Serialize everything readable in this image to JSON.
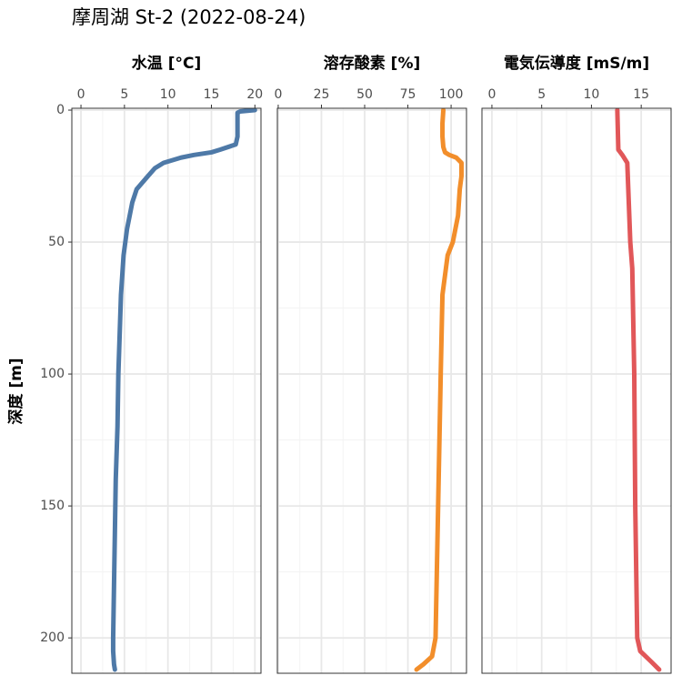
{
  "chart_data": [
    {
      "type": "line",
      "title": "摩周湖 St-2 (2022-08-24)",
      "y_label": "深度 [m]",
      "x_label": "水温 [°C]",
      "ylim": [
        -0.7,
        213.4
      ],
      "yticks": [
        0,
        50,
        100,
        150,
        200
      ],
      "y_reversed": true,
      "grid": true,
      "xlim": [
        -1.05,
        20.7
      ],
      "xticks": [
        0,
        5,
        10,
        15,
        20
      ],
      "depth": [
        0,
        0.5,
        1,
        5,
        10,
        13,
        15,
        16,
        17,
        18,
        19,
        20,
        22,
        25,
        30,
        35,
        40,
        45,
        50,
        55,
        60,
        70,
        80,
        90,
        100,
        120,
        140,
        160,
        180,
        200,
        205,
        210,
        212
      ],
      "series": [
        {
          "color": "#4e79a7",
          "values": [
            20,
            18.3,
            18,
            18,
            18,
            17.8,
            16,
            15,
            13,
            11.5,
            10.5,
            9.5,
            8.5,
            7.7,
            6.4,
            5.9,
            5.6,
            5.3,
            5.1,
            4.9,
            4.8,
            4.6,
            4.5,
            4.4,
            4.3,
            4.2,
            4.0,
            3.9,
            3.8,
            3.7,
            3.7,
            3.8,
            3.9
          ]
        }
      ]
    },
    {
      "type": "line",
      "x_label": "溶存酸素 [%]",
      "xlim": [
        -0.5,
        108.9
      ],
      "xticks": [
        0,
        25,
        50,
        75,
        100
      ],
      "depth": [
        0,
        5,
        10,
        14,
        16,
        17,
        18,
        20,
        25,
        30,
        40,
        50,
        55,
        60,
        70,
        100,
        150,
        200,
        207,
        210,
        212
      ],
      "series": [
        {
          "color": "#f28e2b",
          "values": [
            95.5,
            95,
            95,
            95.5,
            96.5,
            99,
            103,
            106,
            106,
            105,
            104,
            101,
            98,
            97,
            95,
            94,
            92.5,
            91,
            89,
            84,
            80
          ]
        }
      ]
    },
    {
      "type": "line",
      "x_label": "電気伝導度 [mS/m]",
      "xlim": [
        -1.0,
        18.0
      ],
      "xticks": [
        0,
        5,
        10,
        15
      ],
      "depth": [
        0,
        15,
        17,
        20,
        30,
        50,
        60,
        100,
        150,
        200,
        205,
        209,
        212
      ],
      "series": [
        {
          "color": "#e15759",
          "values": [
            12.6,
            12.7,
            13.1,
            13.6,
            13.7,
            13.9,
            14.1,
            14.3,
            14.4,
            14.6,
            14.9,
            16,
            16.8
          ]
        }
      ]
    }
  ]
}
